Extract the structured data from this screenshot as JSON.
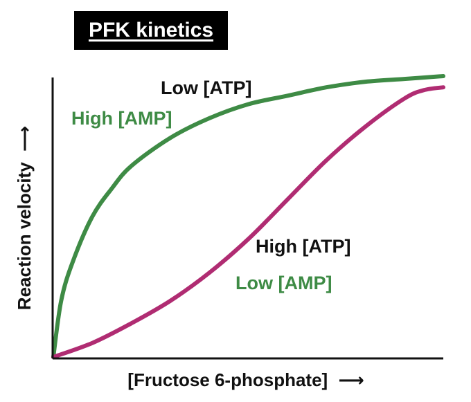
{
  "chart_data": {
    "type": "line",
    "title": "PFK kinetics",
    "xlabel": "[Fructose 6-phosphate]",
    "ylabel": "Reaction velocity",
    "x_arrow": "⟶",
    "y_arrow": "⟶",
    "xlim": [
      0,
      1
    ],
    "ylim": [
      0,
      1
    ],
    "grid": false,
    "series": [
      {
        "name_lines": [
          "Low [ATP]",
          "High [AMP]"
        ],
        "color": "#3e8b45",
        "label_colors": [
          "#111111",
          "#3e8b45"
        ],
        "x": [
          0,
          0.02,
          0.05,
          0.1,
          0.15,
          0.2,
          0.3,
          0.4,
          0.5,
          0.6,
          0.7,
          0.8,
          0.9,
          1.0
        ],
        "y": [
          0,
          0.2,
          0.34,
          0.5,
          0.6,
          0.68,
          0.78,
          0.85,
          0.9,
          0.93,
          0.96,
          0.98,
          0.99,
          1.0
        ]
      },
      {
        "name_lines": [
          "High [ATP]",
          "Low [AMP]"
        ],
        "color": "#b02c72",
        "label_colors": [
          "#111111",
          "#3e8b45"
        ],
        "x": [
          0,
          0.1,
          0.2,
          0.3,
          0.4,
          0.5,
          0.6,
          0.7,
          0.8,
          0.9,
          0.95,
          1.0
        ],
        "y": [
          0,
          0.05,
          0.12,
          0.2,
          0.3,
          0.42,
          0.56,
          0.7,
          0.82,
          0.92,
          0.95,
          0.96
        ]
      }
    ]
  }
}
